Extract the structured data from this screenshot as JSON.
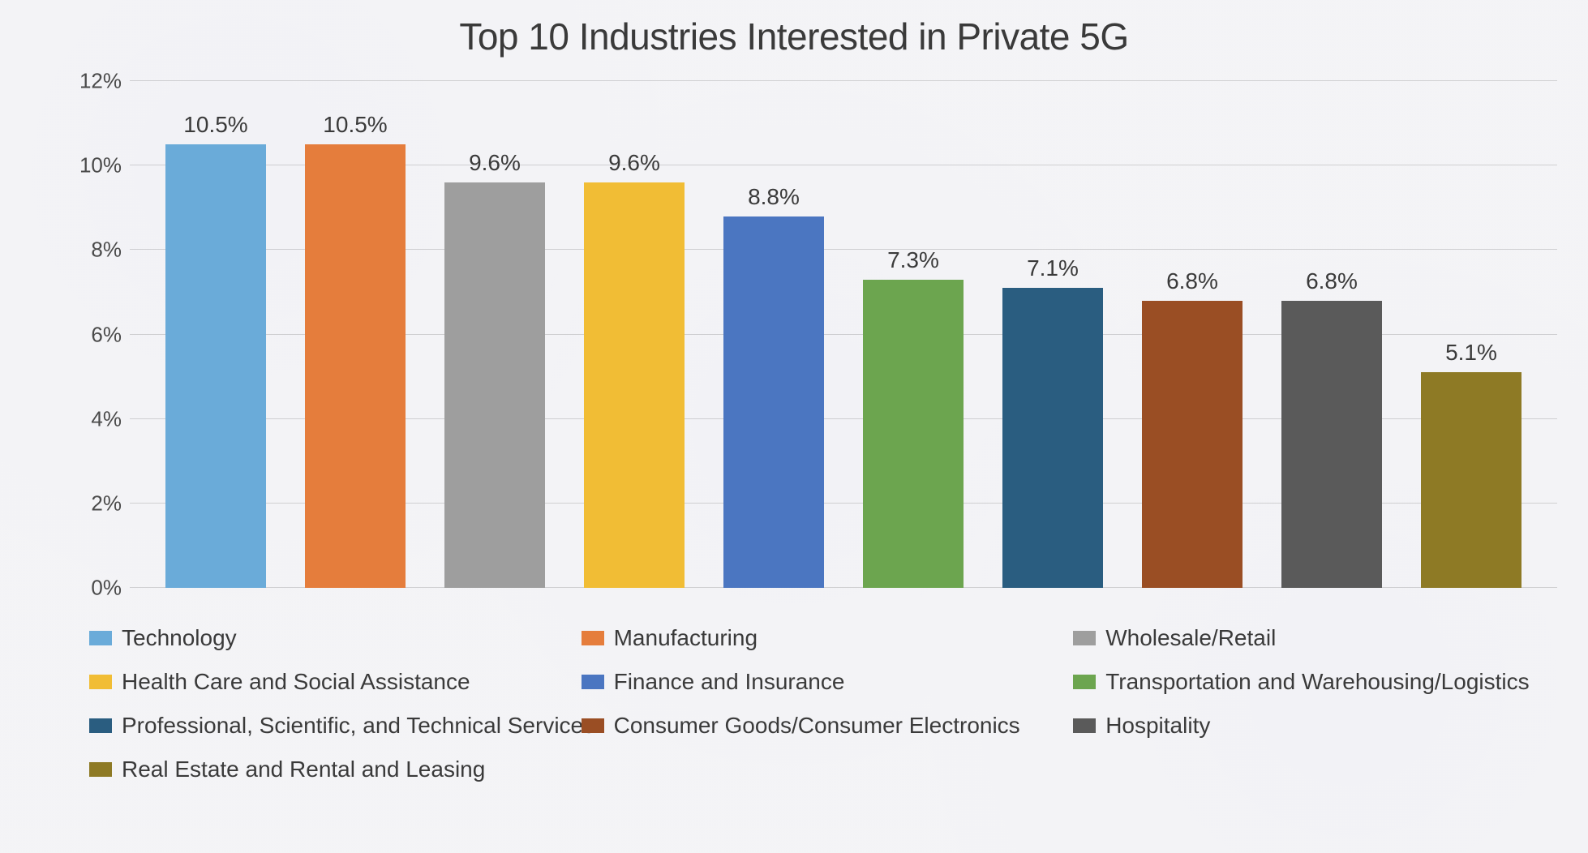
{
  "chart": {
    "type": "bar",
    "title": "Top 10 Industries Interested in Private 5G",
    "title_fontsize": 46,
    "title_color": "#3a3a3a",
    "background_color": "#e8e8ec",
    "ylim": [
      0,
      12
    ],
    "ytick_step": 2,
    "ytick_suffix": "%",
    "ytick_fontsize": 26,
    "ytick_color": "#4a4a4a",
    "grid_color": "rgba(140,140,140,0.35)",
    "bar_label_fontsize": 28,
    "bar_label_color": "#3a3a3a",
    "bar_width_ratio": 0.72,
    "legend_fontsize": 28,
    "legend_color": "#3a3a3a",
    "legend_columns": 3,
    "series": [
      {
        "label": "Technology",
        "value": 10.5,
        "value_label": "10.5%",
        "color": "#6aabd9"
      },
      {
        "label": "Manufacturing",
        "value": 10.5,
        "value_label": "10.5%",
        "color": "#e57d3c"
      },
      {
        "label": "Wholesale/Retail",
        "value": 9.6,
        "value_label": "9.6%",
        "color": "#9e9e9e"
      },
      {
        "label": "Health Care and Social Assistance",
        "value": 9.6,
        "value_label": "9.6%",
        "color": "#f1bd35"
      },
      {
        "label": "Finance and Insurance",
        "value": 8.8,
        "value_label": "8.8%",
        "color": "#4b76c1"
      },
      {
        "label": "Transportation and Warehousing/Logistics",
        "value": 7.3,
        "value_label": "7.3%",
        "color": "#6ca54f"
      },
      {
        "label": "Professional, Scientific, and Technical Services",
        "value": 7.1,
        "value_label": "7.1%",
        "color": "#2a5d80"
      },
      {
        "label": "Consumer Goods/Consumer Electronics",
        "value": 6.8,
        "value_label": "6.8%",
        "color": "#9a4e24"
      },
      {
        "label": "Hospitality",
        "value": 6.8,
        "value_label": "6.8%",
        "color": "#5a5a5a"
      },
      {
        "label": "Real Estate and Rental and Leasing",
        "value": 5.1,
        "value_label": "5.1%",
        "color": "#8e7a25"
      }
    ],
    "yticks": [
      {
        "value": 0,
        "label": "0%"
      },
      {
        "value": 2,
        "label": "2%"
      },
      {
        "value": 4,
        "label": "4%"
      },
      {
        "value": 6,
        "label": "6%"
      },
      {
        "value": 8,
        "label": "8%"
      },
      {
        "value": 10,
        "label": "10%"
      },
      {
        "value": 12,
        "label": "12%"
      }
    ]
  }
}
